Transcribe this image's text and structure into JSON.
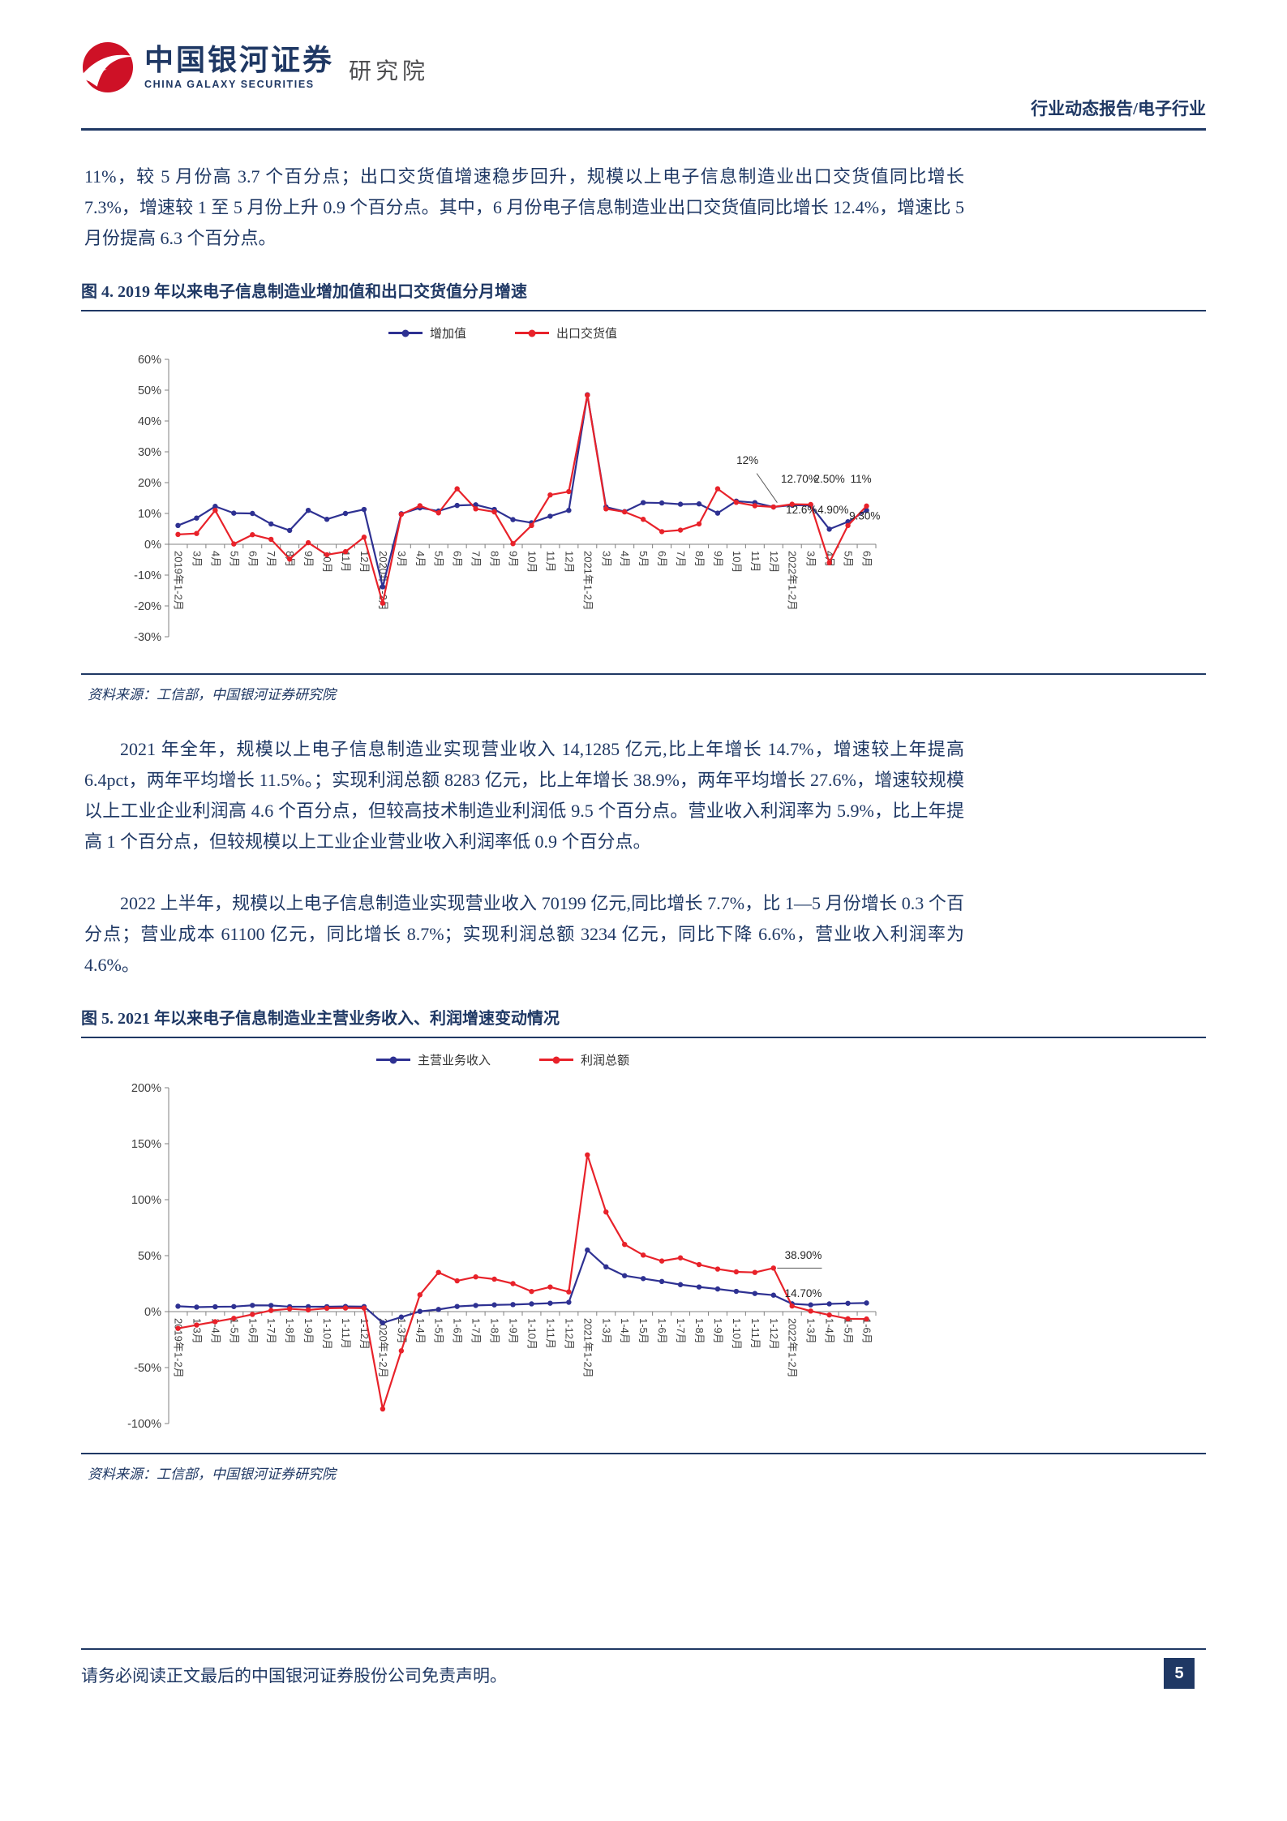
{
  "header": {
    "logo_cn": "中国银河证券",
    "logo_en": "CHINA GALAXY SECURITIES",
    "logo_suffix": "研究院",
    "report_type": "行业动态报告/电子行业"
  },
  "paragraphs": {
    "p1": "11%，较 5 月份高 3.7 个百分点；出口交货值增速稳步回升，规模以上电子信息制造业出口交货值同比增长 7.3%，增速较 1 至 5 月份上升 0.9 个百分点。其中，6 月份电子信息制造业出口交货值同比增长 12.4%，增速比 5 月份提高 6.3 个百分点。",
    "p2": "2021 年全年，规模以上电子信息制造业实现营业收入 14,1285 亿元,比上年增长 14.7%，增速较上年提高 6.4pct，两年平均增长 11.5%。；实现利润总额 8283 亿元，比上年增长 38.9%，两年平均增长 27.6%，增速较规模以上工业企业利润高 4.6 个百分点，但较高技术制造业利润低 9.5 个百分点。营业收入利润率为 5.9%，比上年提高 1 个百分点，但较规模以上工业企业营业收入利润率低 0.9 个百分点。",
    "p3": "2022 上半年，规模以上电子信息制造业实现营业收入 70199 亿元,同比增长 7.7%，比 1—5 月份增长 0.3 个百分点；营业成本 61100 亿元，同比增长 8.7%；实现利润总额 3234 亿元，同比下降 6.6%，营业收入利润率为 4.6%。"
  },
  "source_note": "资料来源：工信部，中国银河证券研究院",
  "footer": {
    "disclaimer": "请务必阅读正文最后的中国银河证券股份公司免责声明。",
    "page_number": "5"
  },
  "colors": {
    "navy": "#1F3864",
    "series_blue": "#2E3192",
    "series_red": "#E8222A"
  },
  "chart_data": [
    {
      "type": "line",
      "title": "图 4. 2019 年以来电子信息制造业增加值和出口交货值分月增速",
      "legend_position": "top",
      "grid": false,
      "ylim": [
        -30,
        60
      ],
      "ytick_step": 10,
      "ytick_labels": [
        "60%",
        "50%",
        "40%",
        "30%",
        "20%",
        "10%",
        "0%",
        "-10%",
        "-20%",
        "-30%"
      ],
      "categories": [
        "2019年1-2月",
        "3月",
        "4月",
        "5月",
        "6月",
        "7月",
        "8月",
        "9月",
        "10月",
        "11月",
        "12月",
        "2020年1-2月",
        "3月",
        "4月",
        "5月",
        "6月",
        "7月",
        "8月",
        "9月",
        "10月",
        "11月",
        "12月",
        "2021年1-2月",
        "3月",
        "4月",
        "5月",
        "6月",
        "7月",
        "8月",
        "9月",
        "10月",
        "11月",
        "12月",
        "2022年1-2月",
        "3月",
        "4月",
        "5月",
        "6月"
      ],
      "series": [
        {
          "name": "增加值",
          "color": "#2E3192",
          "values": [
            6.1,
            8.5,
            12.3,
            10.1,
            10.0,
            6.6,
            4.5,
            11.0,
            8.1,
            10.0,
            11.3,
            -13.8,
            9.9,
            11.8,
            10.8,
            12.6,
            12.8,
            11.3,
            8.0,
            7.0,
            9.1,
            11.0,
            48.5,
            12.1,
            10.6,
            13.5,
            13.4,
            13.0,
            13.1,
            10.1,
            14.0,
            13.5,
            12.1,
            12.7,
            12.6,
            4.9,
            7.3,
            11.0
          ]
        },
        {
          "name": "出口交货值",
          "color": "#E8222A",
          "values": [
            3.2,
            3.5,
            11.0,
            0.1,
            3.1,
            1.6,
            -4.8,
            0.5,
            -3.4,
            -2.4,
            2.3,
            -19.1,
            9.7,
            12.5,
            10.2,
            18.0,
            11.5,
            10.5,
            0.2,
            6.1,
            16.0,
            17.1,
            48.4,
            11.5,
            10.5,
            8.1,
            4.1,
            4.6,
            6.6,
            18.0,
            13.6,
            12.5,
            12.1,
            13.0,
            12.9,
            -6.0,
            6.1,
            12.4
          ]
        }
      ],
      "annotations": [
        {
          "text": "12%",
          "xi": 30.6,
          "v": 26,
          "line": [
            31.1,
            23,
            32.2,
            13.5
          ]
        },
        {
          "text": "12.70%",
          "xi": 33.4,
          "v": 20
        },
        {
          "text": "2.50%",
          "xi": 35.0,
          "v": 20
        },
        {
          "text": "11%",
          "xi": 36.7,
          "v": 20
        },
        {
          "text": "12.6%",
          "xi": 33.5,
          "v": 10
        },
        {
          "text": "4.90%",
          "xi": 35.2,
          "v": 10
        },
        {
          "text": "9.30%",
          "xi": 36.9,
          "v": 8
        }
      ]
    },
    {
      "type": "line",
      "title": "图 5. 2021 年以来电子信息制造业主营业务收入、利润增速变动情况",
      "legend_position": "top",
      "grid": false,
      "ylim": [
        -100,
        200
      ],
      "ytick_step": 50,
      "ytick_labels": [
        "200%",
        "150%",
        "100%",
        "50%",
        "0%",
        "-50%",
        "-100%"
      ],
      "categories": [
        "2019年1-2月",
        "1-3月",
        "1-4月",
        "1-5月",
        "1-6月",
        "1-7月",
        "1-8月",
        "1-9月",
        "1-10月",
        "1-11月",
        "1-12月",
        "2020年1-2月",
        "1-3月",
        "1-4月",
        "1-5月",
        "1-6月",
        "1-7月",
        "1-8月",
        "1-9月",
        "1-10月",
        "1-11月",
        "1-12月",
        "2021年1-2月",
        "1-3月",
        "1-4月",
        "1-5月",
        "1-6月",
        "1-7月",
        "1-8月",
        "1-9月",
        "1-10月",
        "1-11月",
        "1-12月",
        "2022年1-2月",
        "1-3月",
        "1-4月",
        "1-5月",
        "1-6月"
      ],
      "series": [
        {
          "name": "主营业务收入",
          "color": "#2E3192",
          "values": [
            4.8,
            4.0,
            4.3,
            4.5,
            5.6,
            5.5,
            4.4,
            4.4,
            4.4,
            4.6,
            4.5,
            -10.0,
            -4.9,
            0.2,
            1.9,
            4.6,
            5.5,
            6.0,
            6.3,
            6.9,
            7.5,
            8.3,
            55.0,
            40.0,
            32.1,
            29.5,
            26.9,
            24.1,
            22.0,
            20.2,
            18.1,
            16.2,
            14.7,
            7.0,
            6.0,
            6.9,
            7.4,
            7.7
          ]
        },
        {
          "name": "利润总额",
          "color": "#E8222A",
          "values": [
            -15.0,
            -12.0,
            -9.0,
            -6.0,
            -2.5,
            1.0,
            2.5,
            1.5,
            3.0,
            3.2,
            3.1,
            -87.0,
            -35.0,
            15.0,
            35.0,
            27.5,
            31.0,
            29.0,
            25.0,
            18.0,
            22.0,
            17.6,
            140.0,
            89.0,
            60.0,
            50.5,
            45.2,
            48.0,
            42.0,
            38.0,
            35.5,
            35.0,
            38.9,
            5.0,
            0.5,
            -3.0,
            -6.4,
            -6.6
          ]
        }
      ],
      "annotations": [
        {
          "text": "38.90%",
          "xi": 33.6,
          "v": 47,
          "line": [
            32.2,
            38.9,
            34.6,
            38.9
          ]
        },
        {
          "text": "14.70%",
          "xi": 33.6,
          "v": 13
        }
      ]
    }
  ]
}
